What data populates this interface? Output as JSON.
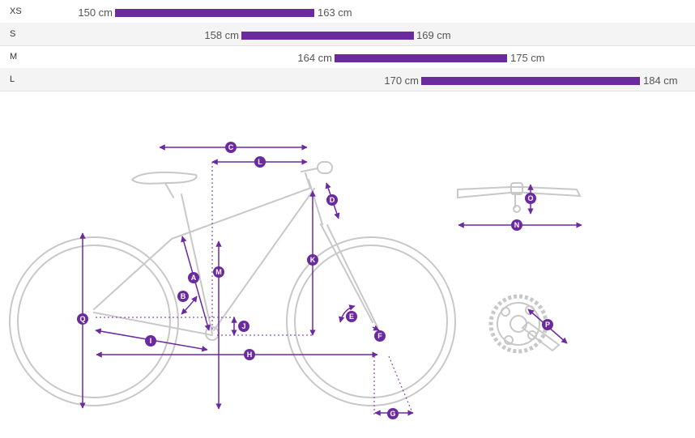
{
  "sizes": [
    {
      "label": "XS",
      "min": "150 cm",
      "max": "163 cm"
    },
    {
      "label": "S",
      "min": "158 cm",
      "max": "169 cm"
    },
    {
      "label": "M",
      "min": "164 cm",
      "max": "175 cm"
    },
    {
      "label": "L",
      "min": "170 cm",
      "max": "184 cm"
    }
  ],
  "diagram": {
    "markers": {
      "A": "A",
      "B": "B",
      "C": "C",
      "D": "D",
      "E": "E",
      "F": "F",
      "G": "G",
      "H": "H",
      "I": "I",
      "J": "J",
      "K": "K",
      "L": "L",
      "M": "M",
      "N": "N",
      "O": "O",
      "P": "P",
      "Q": "Q"
    }
  },
  "colors": {
    "accent": "#6b2b9f",
    "frame": "#c8c8c8",
    "row_alt": "#f4f4f4"
  }
}
